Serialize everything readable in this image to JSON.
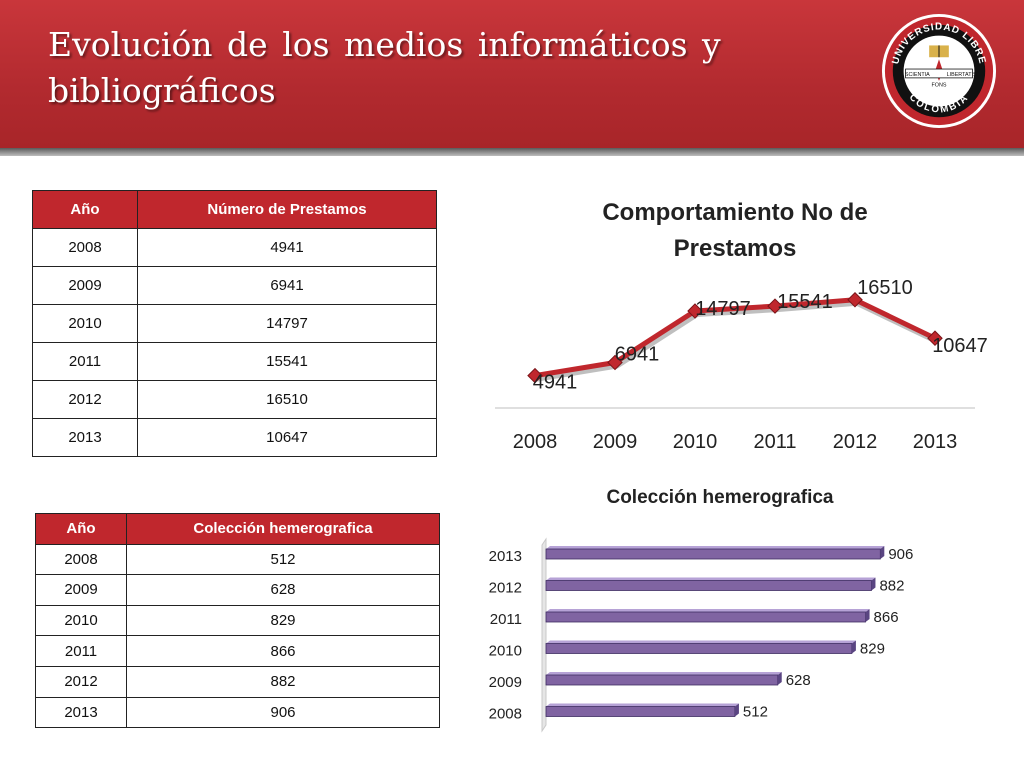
{
  "slide": {
    "title_line1": "Evolución de los  medios  informáticos  y",
    "title_line2": "bibliográficos"
  },
  "logo": {
    "ring_top": "UNIVERSIDAD LIBRE",
    "ring_bottom": "COLOMBIA",
    "banner_left": "SCIENTIA",
    "banner_center": "FONS",
    "banner_right": "LIBERTATIS",
    "colors": {
      "ring": "#c0272d",
      "band": "#111111",
      "gold": "#d9b14a"
    }
  },
  "table_prestamos": {
    "headers": [
      "Año",
      "Número de Prestamos"
    ],
    "rows": [
      [
        "2008",
        "4941"
      ],
      [
        "2009",
        "6941"
      ],
      [
        "2010",
        "14797"
      ],
      [
        "2011",
        "15541"
      ],
      [
        "2012",
        "16510"
      ],
      [
        "2013",
        "10647"
      ]
    ]
  },
  "table_hemero": {
    "headers": [
      "Año",
      "Colección hemerografica"
    ],
    "rows": [
      [
        "2008",
        "512"
      ],
      [
        "2009",
        "628"
      ],
      [
        "2010",
        "829"
      ],
      [
        "2011",
        "866"
      ],
      [
        "2012",
        "882"
      ],
      [
        "2013",
        "906"
      ]
    ]
  },
  "colors": {
    "header_red": "#c0272d",
    "line_series": "#c0272d",
    "bar_series": "#8064a2"
  },
  "chart_data": [
    {
      "type": "line",
      "title": "Comportamiento No de Prestamos",
      "categories": [
        "2008",
        "2009",
        "2010",
        "2011",
        "2012",
        "2013"
      ],
      "values": [
        4941,
        6941,
        14797,
        15541,
        16510,
        10647
      ],
      "data_labels": [
        "4941",
        "6941",
        "14797",
        "15541",
        "16510",
        "10647"
      ],
      "xlabel": "",
      "ylabel": "",
      "ylim": [
        0,
        18000
      ],
      "grid": false,
      "legend": "none"
    },
    {
      "type": "bar",
      "orientation": "horizontal",
      "title": "Colección hemerografica",
      "categories": [
        "2008",
        "2009",
        "2010",
        "2011",
        "2012",
        "2013"
      ],
      "values": [
        512,
        628,
        829,
        866,
        882,
        906
      ],
      "data_labels": [
        "512",
        "628",
        "829",
        "866",
        "882",
        "906"
      ],
      "xlabel": "",
      "ylabel": "",
      "xlim": [
        0,
        1000
      ],
      "grid": false,
      "legend": "none"
    }
  ]
}
